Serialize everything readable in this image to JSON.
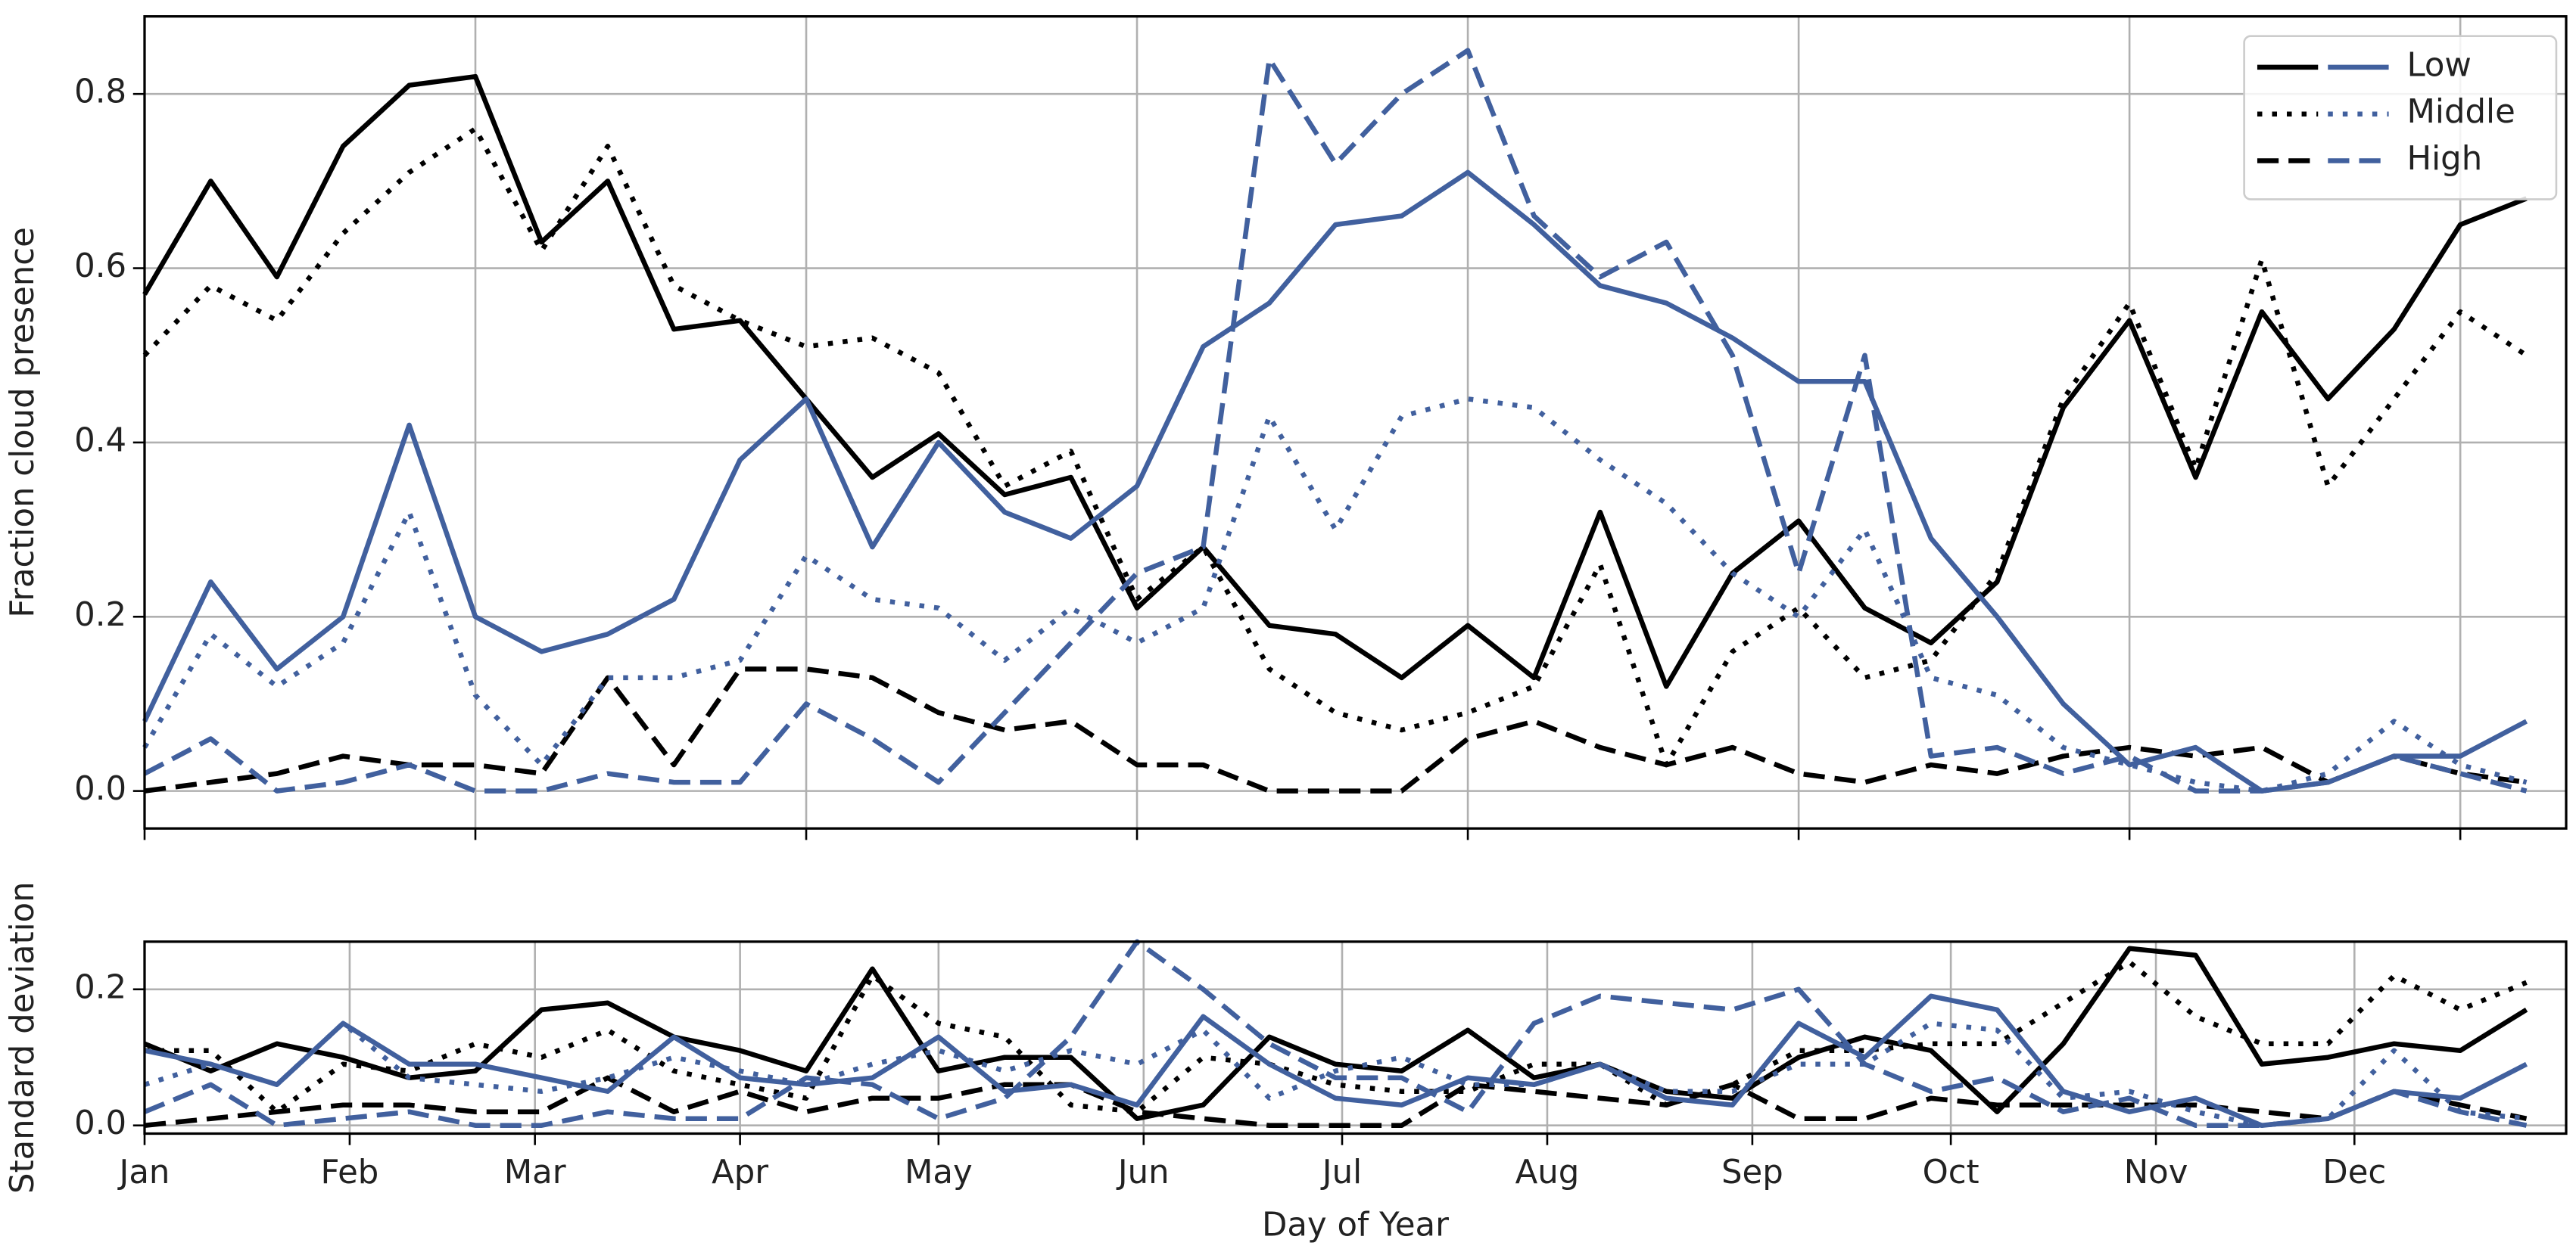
{
  "chart_data": [
    {
      "type": "line",
      "ylabel": "Fraction cloud presence",
      "x": [
        0,
        10,
        20,
        30,
        40,
        50,
        60,
        70,
        80,
        90,
        100,
        110,
        120,
        130,
        140,
        150,
        160,
        170,
        180,
        190,
        200,
        210,
        220,
        230,
        240,
        250,
        260,
        270,
        280,
        290,
        300,
        310,
        320,
        330,
        340,
        350,
        360
      ],
      "xlim": [
        0,
        366
      ],
      "xticks": [
        0,
        50,
        100,
        150,
        200,
        250,
        300,
        350
      ],
      "ylim": [
        -0.043,
        0.889
      ],
      "yticks": [
        {
          "value": 0,
          "label": "0.0"
        },
        0.2,
        0.4,
        0.6,
        0.8
      ],
      "grid": true,
      "legend": "upper right",
      "series": [
        {
          "name": "Low",
          "color": "#000000",
          "linestyle": "solid",
          "values": [
            0.57,
            0.7,
            0.59,
            0.74,
            0.81,
            0.82,
            0.63,
            0.7,
            0.53,
            0.54,
            0.45,
            0.36,
            0.41,
            0.34,
            0.36,
            0.21,
            0.28,
            0.19,
            0.18,
            0.13,
            0.19,
            0.13,
            0.32,
            0.12,
            0.25,
            0.31,
            0.21,
            0.17,
            0.24,
            0.44,
            0.54,
            0.36,
            0.55,
            0.45,
            0.53,
            0.65,
            0.68
          ]
        },
        {
          "name": "Middle",
          "color": "#000000",
          "linestyle": "dotted",
          "values": [
            0.5,
            0.58,
            0.54,
            0.64,
            0.71,
            0.76,
            0.62,
            0.74,
            0.58,
            0.54,
            0.51,
            0.52,
            0.48,
            0.35,
            0.39,
            0.22,
            0.28,
            0.14,
            0.09,
            0.07,
            0.09,
            0.12,
            0.26,
            0.03,
            0.16,
            0.21,
            0.13,
            0.15,
            0.25,
            0.45,
            0.56,
            0.37,
            0.61,
            0.35,
            0.45,
            0.55,
            0.5
          ]
        },
        {
          "name": "High",
          "color": "#000000",
          "linestyle": "dashed",
          "values": [
            0.0,
            0.01,
            0.02,
            0.04,
            0.03,
            0.03,
            0.02,
            0.13,
            0.03,
            0.14,
            0.14,
            0.13,
            0.09,
            0.07,
            0.08,
            0.03,
            0.03,
            0.0,
            0.0,
            0.0,
            0.06,
            0.08,
            0.05,
            0.03,
            0.05,
            0.02,
            0.01,
            0.03,
            0.02,
            0.04,
            0.05,
            0.04,
            0.05,
            0.01,
            0.04,
            0.02,
            0.01
          ]
        },
        {
          "name": "Low",
          "color": "#41609e",
          "linestyle": "solid",
          "values": [
            0.08,
            0.24,
            0.14,
            0.2,
            0.42,
            0.2,
            0.16,
            0.18,
            0.22,
            0.38,
            0.45,
            0.28,
            0.4,
            0.32,
            0.29,
            0.35,
            0.51,
            0.56,
            0.65,
            0.66,
            0.71,
            0.65,
            0.58,
            0.56,
            0.52,
            0.47,
            0.47,
            0.29,
            0.2,
            0.1,
            0.03,
            0.05,
            0.0,
            0.01,
            0.04,
            0.04,
            0.08
          ]
        },
        {
          "name": "Middle",
          "color": "#41609e",
          "linestyle": "dotted",
          "values": [
            0.05,
            0.18,
            0.12,
            0.17,
            0.32,
            0.11,
            0.03,
            0.13,
            0.13,
            0.15,
            0.27,
            0.22,
            0.21,
            0.15,
            0.21,
            0.17,
            0.21,
            0.43,
            0.3,
            0.43,
            0.45,
            0.44,
            0.38,
            0.33,
            0.25,
            0.2,
            0.3,
            0.13,
            0.11,
            0.05,
            0.03,
            0.01,
            0.0,
            0.02,
            0.08,
            0.03,
            0.01
          ]
        },
        {
          "name": "High",
          "color": "#41609e",
          "linestyle": "dashed",
          "values": [
            0.02,
            0.06,
            0.0,
            0.01,
            0.03,
            0.0,
            0.0,
            0.02,
            0.01,
            0.01,
            0.1,
            0.06,
            0.01,
            0.09,
            0.17,
            0.25,
            0.28,
            0.84,
            0.72,
            0.8,
            0.85,
            0.66,
            0.59,
            0.63,
            0.5,
            0.25,
            0.5,
            0.04,
            0.05,
            0.02,
            0.04,
            0.0,
            0.0,
            0.01,
            0.04,
            0.02,
            0.0
          ]
        }
      ]
    },
    {
      "type": "line",
      "ylabel": "Standard deviation",
      "xlabel": "Day of Year",
      "x": [
        0,
        10,
        20,
        30,
        40,
        50,
        60,
        70,
        80,
        90,
        100,
        110,
        120,
        130,
        140,
        150,
        160,
        170,
        180,
        190,
        200,
        210,
        220,
        230,
        240,
        250,
        260,
        270,
        280,
        290,
        300,
        310,
        320,
        330,
        340,
        350,
        360
      ],
      "xlim": [
        0,
        366
      ],
      "xticks": [
        {
          "value": 0,
          "label": "Jan"
        },
        {
          "value": 31,
          "label": "Feb"
        },
        {
          "value": 59,
          "label": "Mar"
        },
        {
          "value": 90,
          "label": "Apr"
        },
        {
          "value": 120,
          "label": "May"
        },
        {
          "value": 151,
          "label": "Jun"
        },
        {
          "value": 181,
          "label": "Jul"
        },
        {
          "value": 212,
          "label": "Aug"
        },
        {
          "value": 243,
          "label": "Sep"
        },
        {
          "value": 273,
          "label": "Oct"
        },
        {
          "value": 304,
          "label": "Nov"
        },
        {
          "value": 334,
          "label": "Dec"
        }
      ],
      "ylim": [
        -0.012,
        0.27
      ],
      "yticks": [
        {
          "value": 0,
          "label": "0.0"
        },
        0.2
      ],
      "grid": true,
      "series": [
        {
          "color": "#000000",
          "linestyle": "solid",
          "values": [
            0.12,
            0.08,
            0.12,
            0.1,
            0.07,
            0.08,
            0.17,
            0.18,
            0.13,
            0.11,
            0.08,
            0.23,
            0.08,
            0.1,
            0.1,
            0.01,
            0.03,
            0.13,
            0.09,
            0.08,
            0.14,
            0.07,
            0.09,
            0.05,
            0.04,
            0.1,
            0.13,
            0.11,
            0.02,
            0.12,
            0.26,
            0.25,
            0.09,
            0.1,
            0.12,
            0.11,
            0.17
          ]
        },
        {
          "color": "#000000",
          "linestyle": "dotted",
          "values": [
            0.11,
            0.11,
            0.02,
            0.09,
            0.08,
            0.12,
            0.1,
            0.14,
            0.08,
            0.06,
            0.04,
            0.22,
            0.15,
            0.13,
            0.03,
            0.02,
            0.1,
            0.09,
            0.06,
            0.05,
            0.05,
            0.09,
            0.09,
            0.03,
            0.06,
            0.11,
            0.11,
            0.12,
            0.12,
            0.18,
            0.24,
            0.16,
            0.12,
            0.12,
            0.22,
            0.17,
            0.21
          ]
        },
        {
          "color": "#000000",
          "linestyle": "dashed",
          "values": [
            0.0,
            0.01,
            0.02,
            0.03,
            0.03,
            0.02,
            0.02,
            0.07,
            0.02,
            0.05,
            0.02,
            0.04,
            0.04,
            0.06,
            0.06,
            0.02,
            0.01,
            0.0,
            0.0,
            0.0,
            0.06,
            0.05,
            0.04,
            0.03,
            0.06,
            0.01,
            0.01,
            0.04,
            0.03,
            0.03,
            0.03,
            0.03,
            0.02,
            0.01,
            0.05,
            0.03,
            0.01
          ]
        },
        {
          "color": "#41609e",
          "linestyle": "solid",
          "values": [
            0.11,
            0.09,
            0.06,
            0.15,
            0.09,
            0.09,
            0.07,
            0.05,
            0.13,
            0.07,
            0.06,
            0.07,
            0.13,
            0.05,
            0.06,
            0.03,
            0.16,
            0.09,
            0.04,
            0.03,
            0.07,
            0.06,
            0.09,
            0.04,
            0.03,
            0.15,
            0.1,
            0.19,
            0.17,
            0.05,
            0.02,
            0.04,
            0.0,
            0.01,
            0.05,
            0.04,
            0.09
          ]
        },
        {
          "color": "#41609e",
          "linestyle": "dotted",
          "values": [
            0.06,
            0.09,
            0.06,
            0.15,
            0.07,
            0.06,
            0.05,
            0.07,
            0.1,
            0.08,
            0.06,
            0.09,
            0.11,
            0.08,
            0.11,
            0.09,
            0.14,
            0.04,
            0.08,
            0.1,
            0.06,
            0.06,
            0.09,
            0.05,
            0.05,
            0.09,
            0.09,
            0.15,
            0.14,
            0.04,
            0.05,
            0.02,
            0.0,
            0.01,
            0.11,
            0.02,
            0.01
          ]
        },
        {
          "color": "#41609e",
          "linestyle": "dashed",
          "values": [
            0.02,
            0.06,
            0.0,
            0.01,
            0.02,
            0.0,
            0.0,
            0.02,
            0.01,
            0.01,
            0.07,
            0.06,
            0.01,
            0.04,
            0.13,
            0.27,
            0.2,
            0.12,
            0.07,
            0.07,
            0.02,
            0.15,
            0.19,
            0.18,
            0.17,
            0.2,
            0.09,
            0.05,
            0.07,
            0.02,
            0.04,
            0.0,
            0.0,
            0.01,
            0.05,
            0.02,
            0.0
          ]
        }
      ]
    }
  ]
}
